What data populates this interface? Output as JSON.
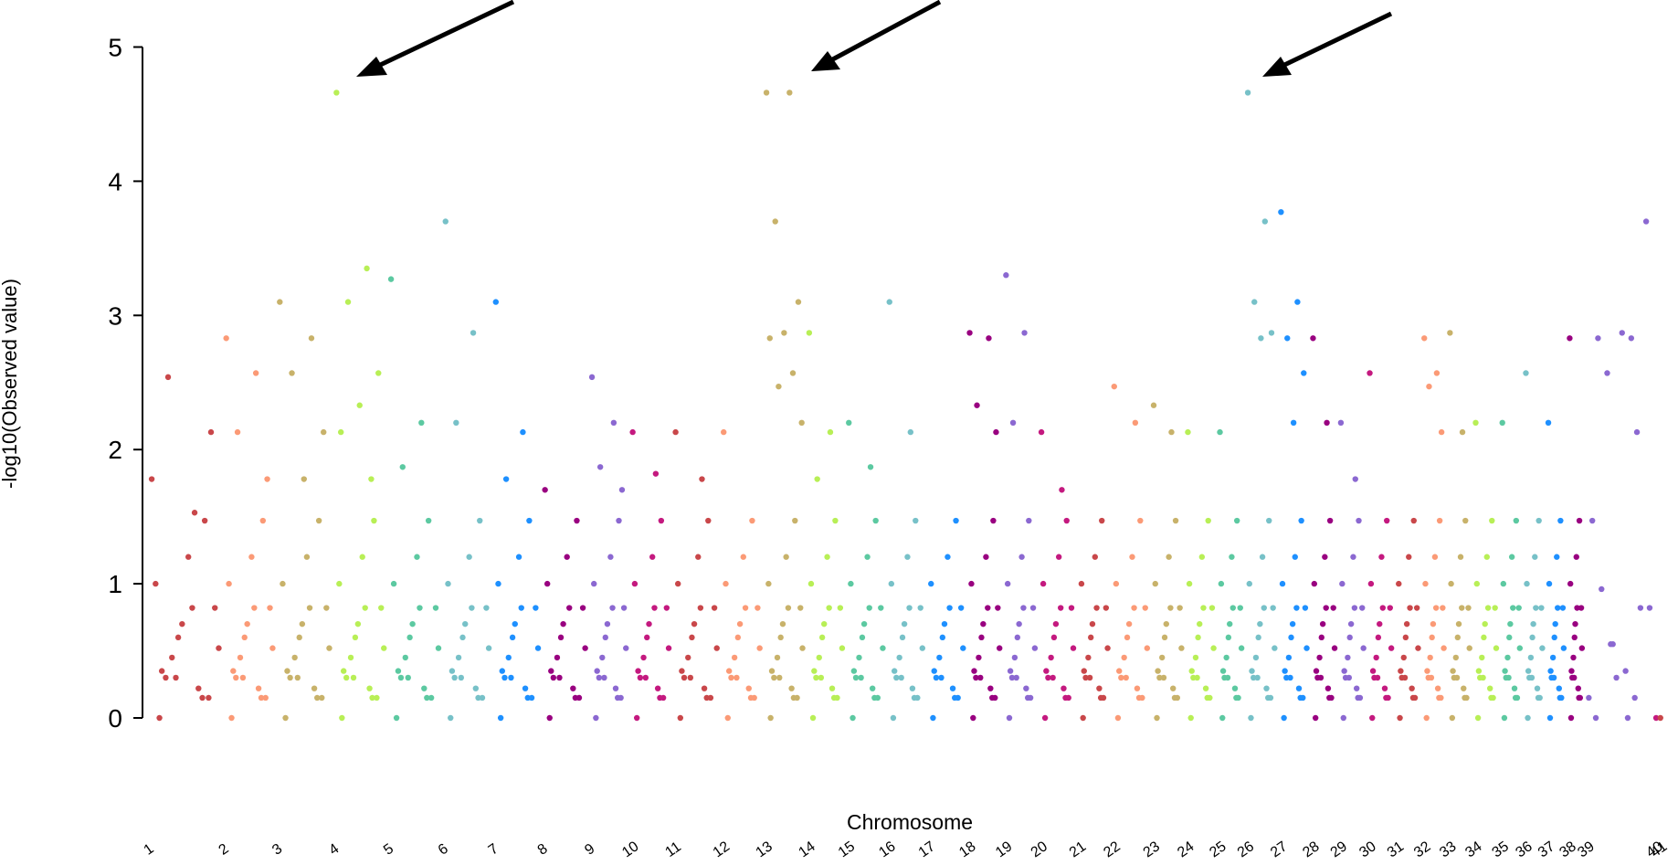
{
  "chart_data": {
    "type": "manhattan",
    "x_label": "Chromosome",
    "y_label": "-log10(Observed value)",
    "ylim": [
      0,
      5
    ],
    "yticks": [
      0,
      1,
      2,
      3,
      4,
      5
    ],
    "palette": [
      "#c9474a",
      "#fb9a76",
      "#c8b26a",
      "#b8ef56",
      "#5cc9a1",
      "#77c1c8",
      "#1e90ff",
      "#990080",
      "#8b68d1",
      "#c4197f"
    ],
    "categories": [
      "1",
      "2",
      "3",
      "4",
      "5",
      "6",
      "7",
      "8",
      "9",
      "10",
      "11",
      "12",
      "13",
      "14",
      "15",
      "16",
      "17",
      "18",
      "19",
      "20",
      "21",
      "22",
      "23",
      "24",
      "25",
      "26",
      "27",
      "28",
      "29",
      "30",
      "31",
      "32",
      "33",
      "34",
      "35",
      "36",
      "37",
      "38",
      "39",
      "40",
      "41"
    ],
    "values": [
      [
        0,
        0.15,
        0.3,
        0.52,
        0.82,
        0.3,
        0.15,
        0.7,
        1.0,
        0.22,
        0.45,
        0.82,
        1.2,
        0.35,
        1.47,
        0.6,
        1.78,
        1.53,
        2.54,
        2.13
      ],
      [
        0,
        0.15,
        0.3,
        0.52,
        0.82,
        0.3,
        0.15,
        0.7,
        1.0,
        0.22,
        0.45,
        0.82,
        1.2,
        0.35,
        1.47,
        0.6,
        2.83,
        2.57,
        2.13,
        1.78
      ],
      [
        0,
        0.15,
        0.3,
        0.52,
        0.82,
        0.3,
        0.15,
        0.7,
        1.0,
        0.22,
        0.45,
        0.82,
        1.2,
        0.35,
        1.47,
        0.6,
        3.1,
        2.83,
        2.57,
        2.13,
        1.78
      ],
      [
        0,
        0.15,
        0.3,
        0.52,
        0.82,
        0.3,
        0.15,
        0.7,
        1.0,
        0.22,
        0.45,
        0.82,
        1.2,
        0.35,
        1.47,
        0.6,
        4.66,
        3.35,
        3.1,
        2.57,
        2.33,
        2.13,
        1.78
      ],
      [
        0,
        0.15,
        0.3,
        0.52,
        0.82,
        0.3,
        0.15,
        0.7,
        1.0,
        0.22,
        0.45,
        0.82,
        1.2,
        0.35,
        1.47,
        0.6,
        3.27,
        2.2,
        1.87
      ],
      [
        0,
        0.15,
        0.3,
        0.52,
        0.82,
        0.3,
        0.15,
        0.7,
        1.0,
        0.22,
        0.45,
        0.82,
        1.2,
        0.35,
        1.47,
        0.6,
        3.7,
        2.87,
        2.2
      ],
      [
        0,
        0.15,
        0.3,
        0.52,
        0.82,
        0.3,
        0.15,
        0.7,
        1.0,
        0.22,
        0.45,
        0.82,
        1.2,
        0.35,
        1.47,
        0.6,
        3.1,
        2.13,
        1.78
      ],
      [
        0,
        0.15,
        0.3,
        0.52,
        0.82,
        0.3,
        0.15,
        0.7,
        1.0,
        0.22,
        0.45,
        0.82,
        1.2,
        0.35,
        1.47,
        0.6,
        1.7
      ],
      [
        0,
        0.15,
        0.3,
        0.52,
        0.82,
        0.3,
        0.15,
        0.7,
        1.0,
        0.22,
        0.45,
        0.82,
        1.2,
        0.35,
        1.47,
        0.6,
        2.54,
        2.2,
        1.87,
        1.7
      ],
      [
        0,
        0.15,
        0.3,
        0.52,
        0.82,
        0.3,
        0.15,
        0.7,
        1.0,
        0.22,
        0.45,
        0.82,
        1.2,
        0.35,
        1.47,
        0.6,
        2.13,
        1.82
      ],
      [
        0,
        0.15,
        0.3,
        0.52,
        0.82,
        0.3,
        0.15,
        0.7,
        1.0,
        0.22,
        0.45,
        0.82,
        1.2,
        0.35,
        1.47,
        0.6,
        2.13,
        1.78
      ],
      [
        0,
        0.15,
        0.3,
        0.52,
        0.82,
        0.3,
        0.15,
        0.7,
        1.0,
        0.22,
        0.45,
        0.82,
        1.2,
        0.35,
        1.47,
        0.6,
        2.13
      ],
      [
        0,
        0.15,
        0.3,
        0.52,
        0.82,
        0.3,
        0.15,
        0.7,
        1.0,
        0.22,
        0.45,
        0.82,
        1.2,
        0.35,
        1.47,
        0.6,
        4.66,
        4.66,
        3.7,
        3.1,
        2.87,
        2.83,
        2.57,
        2.47,
        2.2
      ],
      [
        0,
        0.15,
        0.3,
        0.52,
        0.82,
        0.3,
        0.15,
        0.7,
        1.0,
        0.22,
        0.45,
        0.82,
        1.2,
        0.35,
        1.47,
        0.6,
        2.87,
        2.13,
        1.78
      ],
      [
        0,
        0.15,
        0.3,
        0.52,
        0.82,
        0.3,
        0.15,
        0.7,
        1.0,
        0.22,
        0.45,
        0.82,
        1.2,
        0.35,
        1.47,
        0.6,
        2.2,
        1.87
      ],
      [
        0,
        0.15,
        0.3,
        0.52,
        0.82,
        0.3,
        0.15,
        0.7,
        1.0,
        0.22,
        0.45,
        0.82,
        1.2,
        0.35,
        1.47,
        0.6,
        3.1,
        2.13
      ],
      [
        0,
        0.15,
        0.3,
        0.52,
        0.82,
        0.3,
        0.15,
        0.7,
        1.0,
        0.22,
        0.45,
        0.82,
        1.2,
        0.35,
        1.47,
        0.6
      ],
      [
        0,
        0.15,
        0.3,
        0.52,
        0.82,
        0.3,
        0.15,
        0.7,
        1.0,
        0.22,
        0.45,
        0.82,
        1.2,
        0.35,
        1.47,
        0.6,
        2.87,
        2.83,
        2.33,
        2.13
      ],
      [
        0,
        0.15,
        0.3,
        0.52,
        0.82,
        0.3,
        0.15,
        0.7,
        1.0,
        0.22,
        0.45,
        0.82,
        1.2,
        0.35,
        1.47,
        0.6,
        3.3,
        2.87,
        2.2
      ],
      [
        0,
        0.15,
        0.3,
        0.52,
        0.82,
        0.3,
        0.15,
        0.7,
        1.0,
        0.22,
        0.45,
        0.82,
        1.2,
        0.35,
        1.47,
        0.6,
        2.13,
        1.7
      ],
      [
        0,
        0.15,
        0.3,
        0.52,
        0.82,
        0.3,
        0.15,
        0.7,
        1.0,
        0.22,
        0.45,
        0.82,
        1.2,
        0.35,
        1.47,
        0.6
      ],
      [
        0,
        0.15,
        0.3,
        0.52,
        0.82,
        0.3,
        0.15,
        0.7,
        1.0,
        0.22,
        0.45,
        0.82,
        1.2,
        0.35,
        1.47,
        0.6,
        2.47,
        2.2
      ],
      [
        0,
        0.15,
        0.3,
        0.52,
        0.82,
        0.3,
        0.15,
        0.7,
        1.0,
        0.22,
        0.45,
        0.82,
        1.2,
        0.35,
        1.47,
        0.6,
        2.33,
        2.13
      ],
      [
        0,
        0.15,
        0.3,
        0.52,
        0.82,
        0.3,
        0.15,
        0.7,
        1.0,
        0.22,
        0.45,
        0.82,
        1.2,
        0.35,
        1.47,
        0.6,
        2.13
      ],
      [
        0,
        0.15,
        0.3,
        0.52,
        0.82,
        0.3,
        0.15,
        0.7,
        1.0,
        0.22,
        0.45,
        0.82,
        1.2,
        0.35,
        1.47,
        0.6,
        2.13
      ],
      [
        0,
        0.15,
        0.3,
        0.52,
        0.82,
        0.3,
        0.15,
        0.7,
        1.0,
        0.22,
        0.45,
        0.82,
        1.2,
        0.35,
        1.47,
        0.6,
        4.66,
        3.7,
        3.1,
        2.87,
        2.83
      ],
      [
        0,
        0.15,
        0.3,
        0.52,
        0.82,
        0.3,
        0.15,
        0.7,
        1.0,
        0.22,
        0.45,
        0.82,
        1.2,
        0.35,
        1.47,
        0.6,
        3.77,
        3.1,
        2.83,
        2.57,
        2.2
      ],
      [
        0,
        0.15,
        0.3,
        0.52,
        0.82,
        0.3,
        0.15,
        0.7,
        1.0,
        0.22,
        0.45,
        0.82,
        1.2,
        0.35,
        1.47,
        0.6,
        2.83,
        2.2
      ],
      [
        0,
        0.15,
        0.3,
        0.52,
        0.82,
        0.3,
        0.15,
        0.7,
        1.0,
        0.22,
        0.45,
        0.82,
        1.2,
        0.35,
        1.47,
        0.6,
        2.2,
        1.78
      ],
      [
        0,
        0.15,
        0.3,
        0.52,
        0.82,
        0.3,
        0.15,
        0.7,
        1.0,
        0.22,
        0.45,
        0.82,
        1.2,
        0.35,
        1.47,
        0.6,
        2.57
      ],
      [
        0,
        0.15,
        0.3,
        0.52,
        0.82,
        0.3,
        0.15,
        0.7,
        1.0,
        0.22,
        0.45,
        0.82,
        1.2,
        0.35,
        1.47,
        0.6
      ],
      [
        0,
        0.15,
        0.3,
        0.52,
        0.82,
        0.3,
        0.15,
        0.7,
        1.0,
        0.22,
        0.45,
        0.82,
        1.2,
        0.35,
        1.47,
        0.6,
        2.83,
        2.57,
        2.47,
        2.13
      ],
      [
        0,
        0.15,
        0.3,
        0.52,
        0.82,
        0.3,
        0.15,
        0.7,
        1.0,
        0.22,
        0.45,
        0.82,
        1.2,
        0.35,
        1.47,
        0.6,
        2.87,
        2.13
      ],
      [
        0,
        0.15,
        0.3,
        0.52,
        0.82,
        0.3,
        0.15,
        0.7,
        1.0,
        0.22,
        0.45,
        0.82,
        1.2,
        0.35,
        1.47,
        0.6,
        2.2
      ],
      [
        0,
        0.15,
        0.3,
        0.52,
        0.82,
        0.3,
        0.15,
        0.7,
        1.0,
        0.22,
        0.45,
        0.82,
        1.2,
        0.35,
        1.47,
        0.6,
        2.2
      ],
      [
        0,
        0.15,
        0.3,
        0.52,
        0.82,
        0.3,
        0.15,
        0.7,
        1.0,
        0.22,
        0.45,
        0.82,
        1.2,
        0.35,
        1.47,
        0.6,
        2.57
      ],
      [
        0,
        0.15,
        0.3,
        0.52,
        0.82,
        0.3,
        0.15,
        0.7,
        1.0,
        0.22,
        0.45,
        0.82,
        1.2,
        0.35,
        1.47,
        0.6,
        2.2
      ],
      [
        0,
        0.15,
        0.3,
        0.52,
        0.82,
        0.3,
        0.15,
        0.7,
        1.0,
        0.22,
        0.45,
        0.82,
        1.2,
        0.35,
        1.47,
        0.6,
        2.83
      ],
      [
        0,
        0.15,
        0.55,
        0.82,
        0.35,
        0.96,
        0.82,
        0.3,
        1.47,
        2.83,
        2.57,
        3.7,
        2.87,
        2.83,
        2.13,
        0.55,
        0.15,
        0
      ],
      [
        0
      ],
      [
        0
      ]
    ]
  }
}
